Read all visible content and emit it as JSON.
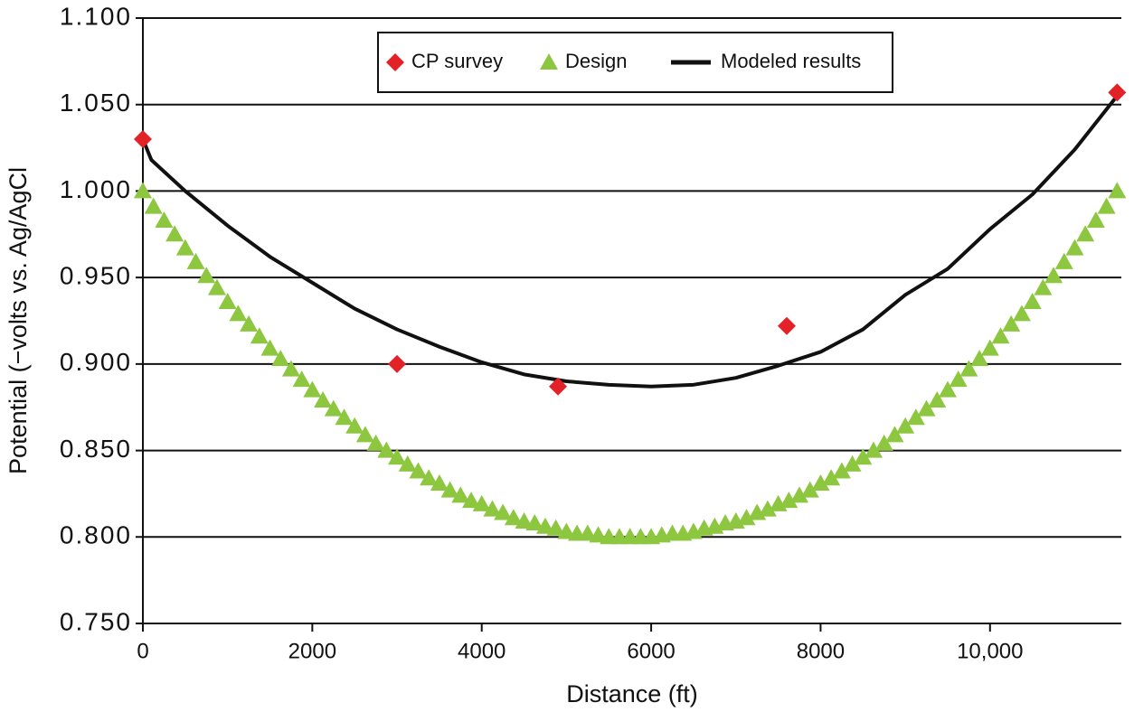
{
  "chart_data": {
    "type": "scatter-line",
    "x_label": "Distance (ft)",
    "y_label": "Potential (−volts vs. Ag/AgCl",
    "xlim": [
      0,
      11550
    ],
    "ylim": [
      0.75,
      1.1
    ],
    "xticks": [
      0,
      2000,
      4000,
      6000,
      8000,
      {
        "value": 10000,
        "label": "10,000"
      }
    ],
    "yticks": [
      {
        "value": 0.75,
        "label": "0.750"
      },
      {
        "value": 0.8,
        "label": "0.800"
      },
      {
        "value": 0.85,
        "label": "0.850"
      },
      {
        "value": 0.9,
        "label": "0.900"
      },
      {
        "value": 0.95,
        "label": "0.950"
      },
      {
        "value": 1.0,
        "label": "1.000"
      },
      {
        "value": 1.05,
        "label": "1.050"
      },
      {
        "value": 1.1,
        "label": "1.100"
      }
    ],
    "grid": true,
    "legend": "top",
    "series": [
      {
        "name": "CP survey",
        "mark": "diamond",
        "color": "#e32227",
        "x": [
          0,
          3000,
          4900,
          7600,
          11500
        ],
        "values": [
          1.03,
          0.9,
          0.887,
          0.922,
          1.057
        ]
      },
      {
        "name": "Design",
        "mark": "triangle",
        "color": "#8dc63f",
        "x": [
          0,
          125,
          250,
          375,
          500,
          625,
          750,
          875,
          1000,
          1125,
          1250,
          1375,
          1500,
          1625,
          1750,
          1875,
          2000,
          2125,
          2250,
          2375,
          2500,
          2625,
          2750,
          2875,
          3000,
          3125,
          3250,
          3375,
          3500,
          3625,
          3750,
          3875,
          4000,
          4125,
          4250,
          4375,
          4500,
          4625,
          4750,
          4875,
          5000,
          5125,
          5250,
          5375,
          5500,
          5625,
          5750,
          5875,
          6000,
          6125,
          6250,
          6375,
          6500,
          6625,
          6750,
          6875,
          7000,
          7125,
          7250,
          7375,
          7500,
          7625,
          7750,
          7875,
          8000,
          8125,
          8250,
          8375,
          8500,
          8625,
          8750,
          8875,
          9000,
          9125,
          9250,
          9375,
          9500,
          9625,
          9750,
          9875,
          10000,
          10125,
          10250,
          10375,
          10500,
          10625,
          10750,
          10875,
          11000,
          11125,
          11250,
          11375,
          11500
        ],
        "values": [
          1.0,
          0.991,
          0.983,
          0.975,
          0.967,
          0.959,
          0.951,
          0.944,
          0.936,
          0.929,
          0.923,
          0.916,
          0.909,
          0.903,
          0.897,
          0.891,
          0.885,
          0.879,
          0.874,
          0.869,
          0.864,
          0.859,
          0.854,
          0.85,
          0.846,
          0.842,
          0.838,
          0.834,
          0.831,
          0.827,
          0.824,
          0.821,
          0.819,
          0.816,
          0.814,
          0.811,
          0.809,
          0.808,
          0.806,
          0.805,
          0.803,
          0.802,
          0.802,
          0.801,
          0.8,
          0.8,
          0.8,
          0.8,
          0.8,
          0.801,
          0.802,
          0.802,
          0.803,
          0.805,
          0.806,
          0.808,
          0.809,
          0.811,
          0.814,
          0.816,
          0.819,
          0.821,
          0.824,
          0.827,
          0.831,
          0.834,
          0.838,
          0.842,
          0.846,
          0.85,
          0.854,
          0.859,
          0.864,
          0.869,
          0.874,
          0.879,
          0.885,
          0.891,
          0.897,
          0.903,
          0.909,
          0.916,
          0.923,
          0.929,
          0.936,
          0.944,
          0.951,
          0.959,
          0.967,
          0.975,
          0.983,
          0.991,
          1.0
        ]
      },
      {
        "name": "Modeled results",
        "mark": "line",
        "color": "#111111",
        "x": [
          0,
          100,
          500,
          1000,
          1500,
          2000,
          2500,
          3000,
          3500,
          4000,
          4500,
          5000,
          5500,
          6000,
          6500,
          7000,
          7500,
          8000,
          8500,
          9000,
          9500,
          10000,
          10500,
          11000,
          11500
        ],
        "values": [
          1.03,
          1.018,
          1.0,
          0.98,
          0.962,
          0.947,
          0.932,
          0.92,
          0.91,
          0.901,
          0.894,
          0.89,
          0.888,
          0.887,
          0.888,
          0.892,
          0.899,
          0.907,
          0.92,
          0.94,
          0.955,
          0.978,
          0.998,
          1.024,
          1.055
        ]
      }
    ]
  }
}
